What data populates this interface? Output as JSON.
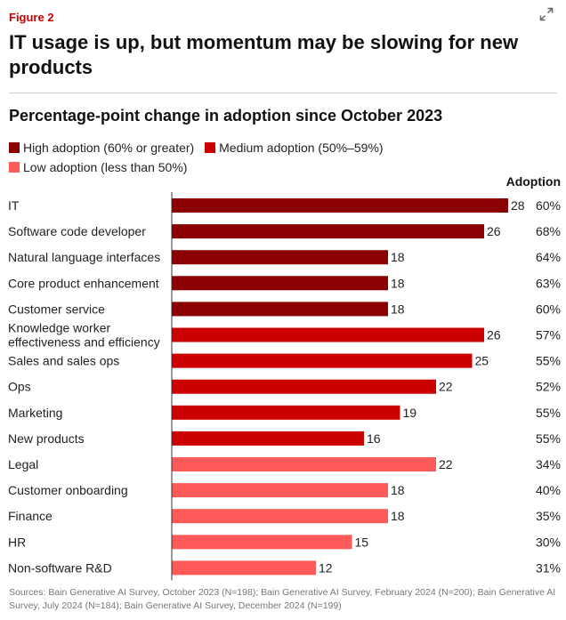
{
  "figure_label": "Figure 2",
  "headline": "IT usage is up, but momentum may be slowing for new products",
  "expand_icon": "expand-arrows-icon",
  "colors": {
    "high": "#8b0000",
    "medium": "#cc0000",
    "low": "#ff5a5a",
    "axis": "#333333"
  },
  "legend": [
    {
      "label": "High adoption (60% or greater)",
      "tier": "high"
    },
    {
      "label": "Medium adoption (50%–59%)",
      "tier": "medium"
    },
    {
      "label": "Low adoption (less than 50%)",
      "tier": "low"
    }
  ],
  "adoption_header": "Adoption",
  "sources": "Sources: Bain Generative AI Survey, October 2023 (N=198); Bain Generative AI Survey, February 2024 (N=200); Bain Generative AI Survey, July 2024 (N=184); Bain Generative AI Survey, December 2024 (N=199)",
  "chart_data": {
    "type": "bar",
    "orientation": "horizontal",
    "title": "Percentage-point change in adoption since October 2023",
    "xlim": [
      0,
      30
    ],
    "grid": false,
    "categories": [
      {
        "label": [
          "IT"
        ],
        "value": 28,
        "adoption": "60%",
        "tier": "high"
      },
      {
        "label": [
          "Software code developer"
        ],
        "value": 26,
        "adoption": "68%",
        "tier": "high"
      },
      {
        "label": [
          "Natural language interfaces"
        ],
        "value": 18,
        "adoption": "64%",
        "tier": "high"
      },
      {
        "label": [
          "Core product enhancement"
        ],
        "value": 18,
        "adoption": "63%",
        "tier": "high"
      },
      {
        "label": [
          "Customer service"
        ],
        "value": 18,
        "adoption": "60%",
        "tier": "high"
      },
      {
        "label": [
          "Knowledge worker",
          "effectiveness and efficiency"
        ],
        "value": 26,
        "adoption": "57%",
        "tier": "medium"
      },
      {
        "label": [
          "Sales and sales ops"
        ],
        "value": 25,
        "adoption": "55%",
        "tier": "medium"
      },
      {
        "label": [
          "Ops"
        ],
        "value": 22,
        "adoption": "52%",
        "tier": "medium"
      },
      {
        "label": [
          "Marketing"
        ],
        "value": 19,
        "adoption": "55%",
        "tier": "medium"
      },
      {
        "label": [
          "New products"
        ],
        "value": 16,
        "adoption": "55%",
        "tier": "medium"
      },
      {
        "label": [
          "Legal"
        ],
        "value": 22,
        "adoption": "34%",
        "tier": "low"
      },
      {
        "label": [
          "Customer onboarding"
        ],
        "value": 18,
        "adoption": "40%",
        "tier": "low"
      },
      {
        "label": [
          "Finance"
        ],
        "value": 18,
        "adoption": "35%",
        "tier": "low"
      },
      {
        "label": [
          "HR"
        ],
        "value": 15,
        "adoption": "30%",
        "tier": "low"
      },
      {
        "label": [
          "Non-software R&D"
        ],
        "value": 12,
        "adoption": "31%",
        "tier": "low"
      }
    ]
  }
}
